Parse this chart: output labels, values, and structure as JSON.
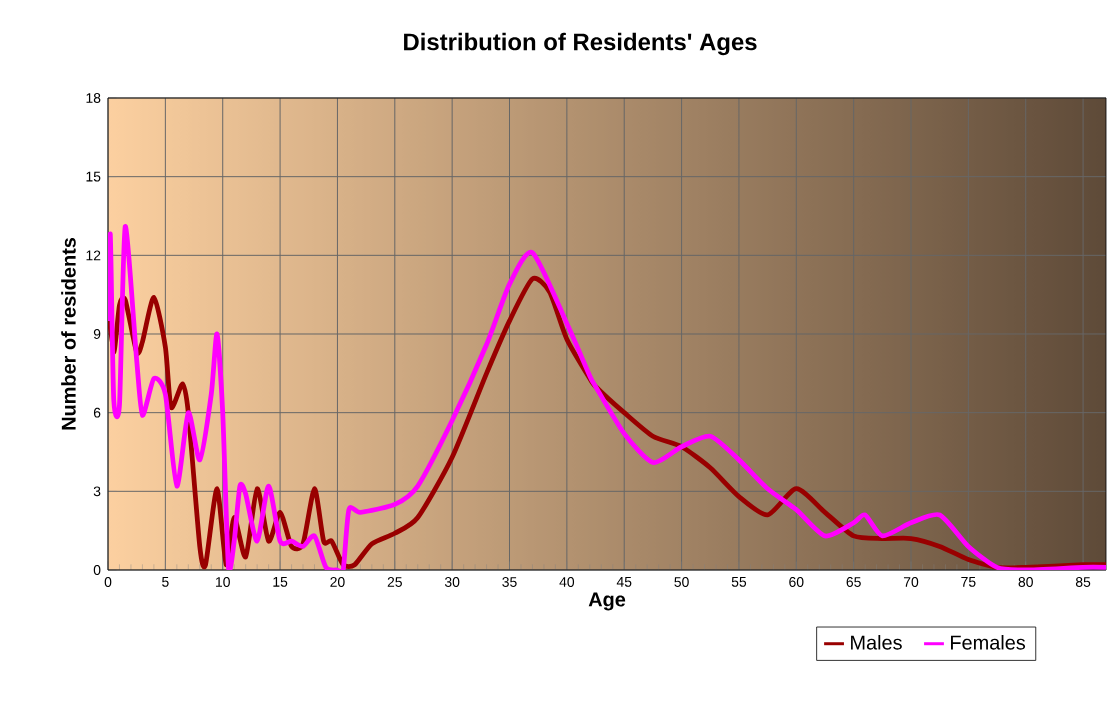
{
  "chart_data": {
    "type": "line",
    "title": "Distribution of Residents' Ages",
    "xlabel": "Age",
    "ylabel": "Number of residents",
    "xlim": [
      0,
      87
    ],
    "xticks": [
      0,
      5,
      10,
      15,
      20,
      25,
      30,
      35,
      40,
      45,
      50,
      55,
      60,
      65,
      70,
      75,
      80,
      85
    ],
    "ylim": [
      0,
      18
    ],
    "yticks": [
      0,
      3,
      6,
      9,
      12,
      15,
      18
    ],
    "grid": true,
    "legend": "bottom right",
    "marker": "none",
    "line_style": "solid",
    "series": [
      {
        "name": "Males",
        "color": "#990000",
        "x": [
          0,
          0.5,
          1,
          1.5,
          2.5,
          3,
          4,
          5,
          5.5,
          6.5,
          7,
          8,
          8.5,
          9.5,
          10.3,
          11,
          12,
          13,
          14,
          15,
          16,
          17,
          18,
          18.8,
          19.5,
          20.5,
          21.5,
          23,
          25,
          27,
          30,
          33,
          35,
          37,
          38.5,
          40,
          42,
          42.5,
          45,
          47.5,
          50,
          52.5,
          55,
          57.5,
          60,
          62.5,
          65,
          67.5,
          70,
          72.5,
          75,
          77.5,
          80,
          85,
          87
        ],
        "values": [
          10.1,
          8.3,
          10.1,
          10.3,
          8.3,
          8.7,
          10.4,
          8.5,
          6.2,
          7.1,
          6.0,
          0.9,
          0.2,
          3.1,
          0.2,
          2.0,
          0.5,
          3.1,
          1.1,
          2.2,
          0.9,
          1.0,
          3.1,
          1.1,
          1.1,
          0.2,
          0.2,
          1.0,
          1.4,
          2.0,
          4.3,
          7.5,
          9.5,
          11.1,
          10.6,
          8.8,
          7.3,
          7.0,
          6.0,
          5.1,
          4.7,
          3.9,
          2.8,
          2.1,
          3.1,
          2.2,
          1.3,
          1.2,
          1.2,
          0.9,
          0.4,
          0.1,
          0.1,
          0.2,
          0.2
        ]
      },
      {
        "name": "Females",
        "color": "#ff00ff",
        "x": [
          0,
          0.2,
          0.5,
          1,
          1.5,
          2.5,
          3,
          4,
          5,
          6,
          7,
          8,
          9,
          9.5,
          10,
          10.5,
          11,
          11.5,
          12,
          13,
          14,
          15,
          16,
          17,
          18,
          19,
          20,
          20.5,
          21,
          22,
          25,
          27,
          30,
          33,
          35,
          37,
          40,
          42,
          42.5,
          45,
          47.5,
          50,
          52.5,
          55,
          57.5,
          60,
          62.5,
          65,
          66,
          67.5,
          70,
          72.5,
          75,
          77.5,
          80,
          85,
          87
        ],
        "values": [
          9.5,
          12.8,
          6.5,
          6.3,
          13.1,
          8.0,
          5.9,
          7.3,
          6.7,
          3.2,
          6.0,
          4.2,
          6.7,
          9.0,
          6.0,
          0.1,
          1.1,
          3.2,
          2.9,
          1.1,
          3.2,
          1.1,
          1.1,
          0.9,
          1.3,
          0.1,
          0,
          0,
          2.3,
          2.2,
          2.5,
          3.2,
          5.7,
          8.6,
          10.9,
          12.1,
          9.4,
          7.4,
          7.0,
          5.2,
          4.1,
          4.7,
          5.1,
          4.2,
          3.1,
          2.3,
          1.3,
          1.8,
          2.1,
          1.3,
          1.8,
          2.1,
          0.9,
          0.1,
          0,
          0.1,
          0.1
        ]
      }
    ]
  }
}
